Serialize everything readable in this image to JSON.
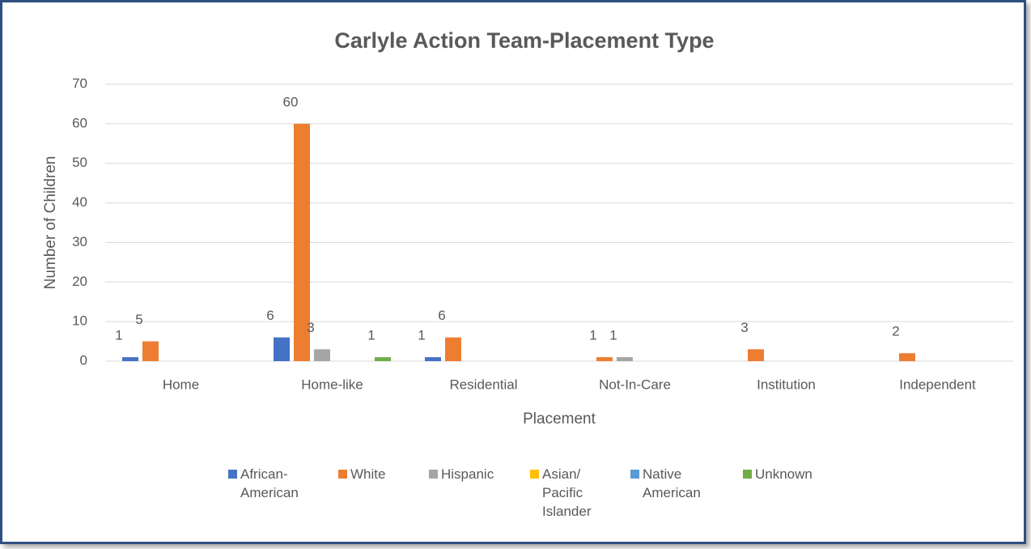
{
  "chart_data": {
    "type": "bar",
    "title": "Carlyle Action Team-Placement Type",
    "x_label": "Placement",
    "y_label": "Number of Children",
    "categories": [
      "Home",
      "Home-like",
      "Residential",
      "Not-In-Care",
      "Institution",
      "Independent"
    ],
    "series": [
      {
        "name": "African-American",
        "color": "#4472c4",
        "values": [
          1,
          6,
          1,
          0,
          0,
          0
        ]
      },
      {
        "name": "White",
        "color": "#ed7d31",
        "values": [
          5,
          60,
          6,
          1,
          3,
          2
        ]
      },
      {
        "name": "Hispanic",
        "color": "#a5a5a5",
        "values": [
          0,
          3,
          0,
          1,
          0,
          0
        ]
      },
      {
        "name": "Asian/ Pacific Islander",
        "color": "#ffc000",
        "values": [
          0,
          0,
          0,
          0,
          0,
          0
        ]
      },
      {
        "name": "Native American",
        "color": "#5b9bd5",
        "values": [
          0,
          0,
          0,
          0,
          0,
          0
        ]
      },
      {
        "name": "Unknown",
        "color": "#70ad47",
        "values": [
          0,
          1,
          0,
          0,
          0,
          0
        ]
      }
    ],
    "ylim": [
      0,
      70
    ],
    "yticks": [
      0,
      10,
      20,
      30,
      40,
      50,
      60,
      70
    ],
    "grid": true,
    "legend": "bottom"
  }
}
